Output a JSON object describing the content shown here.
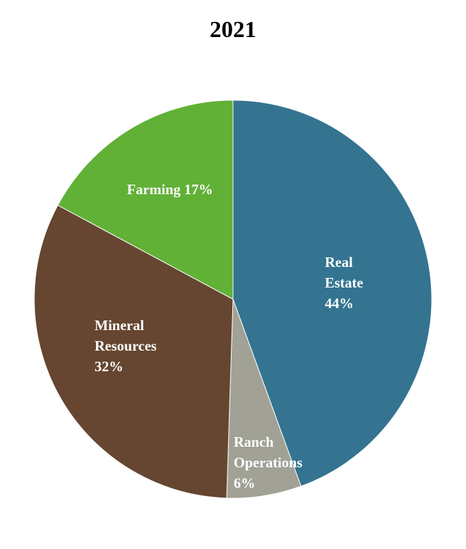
{
  "chart_data": {
    "type": "pie",
    "title": "2021",
    "slices": [
      {
        "label_lines": [
          "Real",
          "Estate",
          "44%"
        ],
        "value": 44,
        "color": "#347491"
      },
      {
        "label_lines": [
          "Ranch",
          "Operations",
          "6%"
        ],
        "value": 6,
        "color": "#a2a196"
      },
      {
        "label_lines": [
          "Mineral",
          "Resources",
          "32%"
        ],
        "value": 32,
        "color": "#664630"
      },
      {
        "label_lines": [
          "Farming 17%"
        ],
        "value": 17,
        "color": "#61b137"
      }
    ],
    "legend": "none",
    "labels_inside": true
  }
}
